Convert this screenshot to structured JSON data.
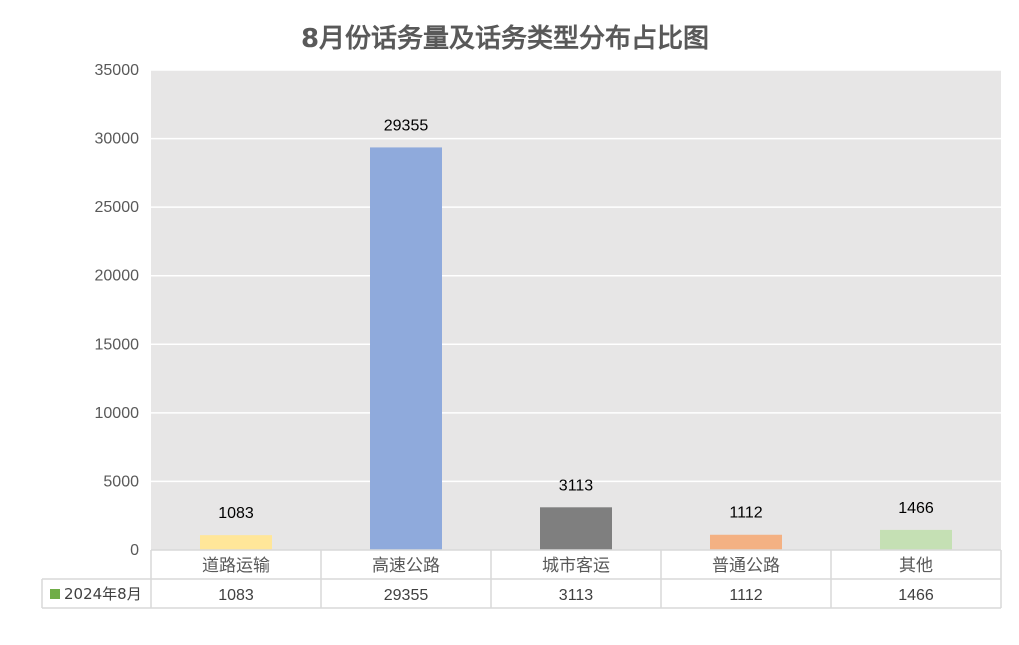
{
  "chart_data": {
    "type": "bar",
    "title": "8月份话务量及话务类型分布占比图",
    "categories": [
      "道路运输",
      "高速公路",
      "城市客运",
      "普通公路",
      "其他"
    ],
    "series": [
      {
        "name": "2024年8月",
        "values": [
          1083,
          29355,
          3113,
          1112,
          1466
        ],
        "legend_color": "#70AD47"
      }
    ],
    "bar_colors": [
      "#FFE699",
      "#8FAADC",
      "#7F7F7F",
      "#F4B183",
      "#C5E0B4"
    ],
    "ylim": [
      0,
      35000
    ],
    "yticks": [
      0,
      5000,
      10000,
      15000,
      20000,
      25000,
      30000,
      35000
    ],
    "grid": true,
    "plot_background": "#E7E6E6",
    "data_table": true,
    "xlabel": "",
    "ylabel": ""
  }
}
